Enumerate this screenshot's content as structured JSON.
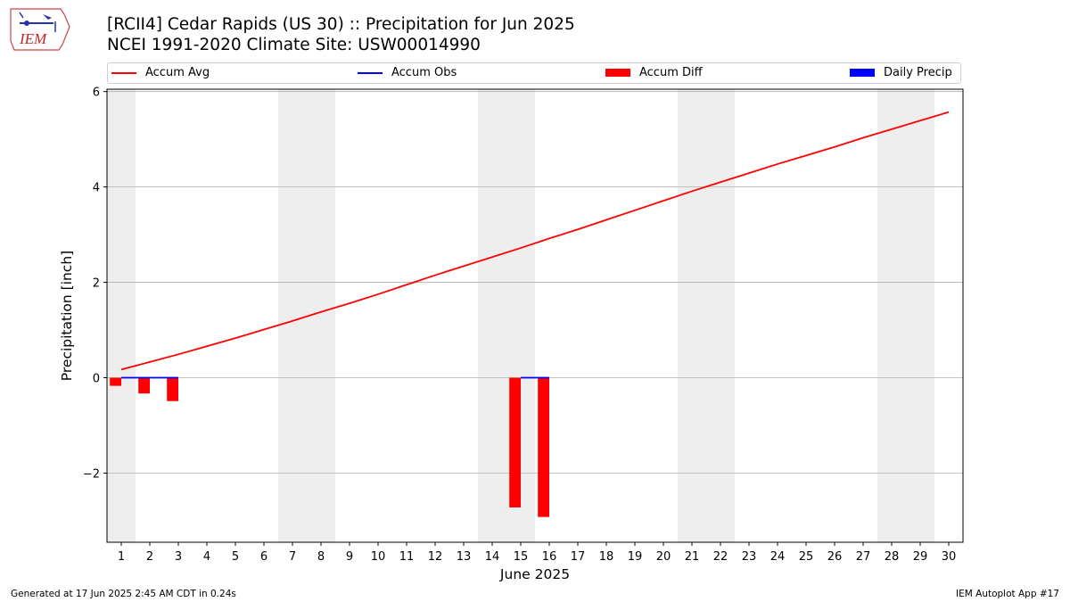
{
  "logo": {
    "text": "IEM",
    "color": "#cc2222"
  },
  "header": {
    "title": "[RCII4] Cedar Rapids (US 30) :: Precipitation for Jun 2025",
    "subtitle": "NCEI 1991-2020 Climate Site: USW00014990"
  },
  "legend": [
    {
      "label": "Accum Avg",
      "symbol": "line",
      "color": "#ff0000"
    },
    {
      "label": "Accum Obs",
      "symbol": "line",
      "color": "#0000ff"
    },
    {
      "label": "Accum Diff",
      "symbol": "bar",
      "color": "#ff0000"
    },
    {
      "label": "Daily Precip",
      "symbol": "bar",
      "color": "#0000ff"
    }
  ],
  "footer": {
    "left": "Generated at 17 Jun 2025 2:45 AM CDT in 0.24s",
    "right": "IEM Autoplot App #17"
  },
  "chart_data": {
    "type": "bar",
    "xlabel": "June 2025",
    "ylabel": "Precipitation [inch]",
    "xlim": [
      0.5,
      30.5
    ],
    "ylim": [
      -3.45,
      6.05
    ],
    "xticks": [
      1,
      2,
      3,
      4,
      5,
      6,
      7,
      8,
      9,
      10,
      11,
      12,
      13,
      14,
      15,
      16,
      17,
      18,
      19,
      20,
      21,
      22,
      23,
      24,
      25,
      26,
      27,
      28,
      29,
      30
    ],
    "yticks": [
      -2,
      0,
      2,
      4,
      6
    ],
    "ytick_labels": [
      "−2",
      "0",
      "2",
      "4",
      "6"
    ],
    "grid": "horizontal",
    "weekend_shading": [
      [
        0.5,
        1.5
      ],
      [
        6.5,
        8.5
      ],
      [
        13.5,
        15.5
      ],
      [
        20.5,
        22.5
      ],
      [
        27.5,
        29.5
      ]
    ],
    "series": [
      {
        "name": "Accum Avg",
        "type": "line",
        "color": "#ff0000",
        "x": [
          1,
          2,
          3,
          4,
          5,
          6,
          7,
          8,
          9,
          10,
          11,
          12,
          13,
          14,
          15,
          16,
          17,
          18,
          19,
          20,
          21,
          22,
          23,
          24,
          25,
          26,
          27,
          28,
          29,
          30
        ],
        "values": [
          0.17,
          0.33,
          0.49,
          0.66,
          0.83,
          1.01,
          1.19,
          1.38,
          1.56,
          1.75,
          1.95,
          2.15,
          2.34,
          2.53,
          2.72,
          2.92,
          3.11,
          3.31,
          3.51,
          3.71,
          3.91,
          4.1,
          4.29,
          4.48,
          4.66,
          4.84,
          5.03,
          5.21,
          5.39,
          5.57
        ]
      },
      {
        "name": "Accum Obs",
        "type": "line",
        "color": "#0000ff",
        "x": [
          1,
          2,
          3,
          15,
          16
        ],
        "values": [
          0,
          0,
          0,
          0,
          0
        ],
        "segments": [
          [
            1,
            3
          ],
          [
            15,
            16
          ]
        ]
      },
      {
        "name": "Accum Diff",
        "type": "bar",
        "color": "#ff0000",
        "x": [
          1,
          2,
          3,
          15,
          16
        ],
        "values": [
          -0.17,
          -0.33,
          -0.49,
          -2.72,
          -2.92
        ]
      },
      {
        "name": "Daily Precip",
        "type": "bar",
        "color": "#0000ff",
        "x": [
          1,
          2,
          3,
          15,
          16
        ],
        "values": [
          0,
          0,
          0,
          0,
          0
        ]
      }
    ]
  }
}
